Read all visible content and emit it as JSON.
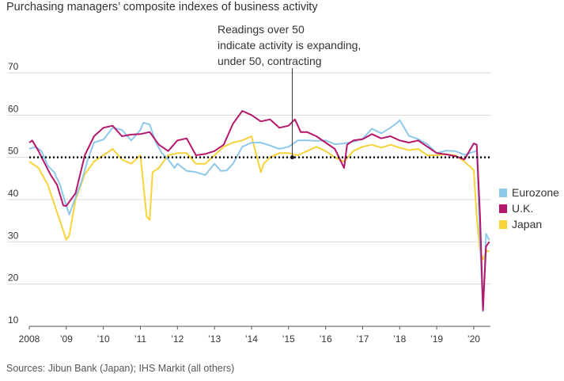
{
  "title": "Purchasing managers’ composite indexes of business activity",
  "source": "Sources: Jibun Bank (Japan); IHS Markit (all others)",
  "colors": {
    "eurozone": "#8ec8ea",
    "uk": "#b5176b",
    "japan": "#f7d33a",
    "reference": "#111111",
    "grid": "#d9d9d9"
  },
  "chart_data": {
    "type": "line",
    "title": "Purchasing managers’ composite indexes of business activity",
    "xlabel": "",
    "ylabel": "",
    "xlim": [
      2008,
      2020.45
    ],
    "ylim": [
      10,
      70
    ],
    "grid": true,
    "legend_position": "right",
    "x_tick_values": [
      2008,
      2009,
      2010,
      2011,
      2012,
      2013,
      2014,
      2015,
      2016,
      2017,
      2018,
      2019,
      2020
    ],
    "x_tick_labels": [
      "2008",
      "’09",
      "’10",
      "’11",
      "’12",
      "’13",
      "’14",
      "’15",
      "’16",
      "’17",
      "’18",
      "’19",
      "’20"
    ],
    "y_ticks": [
      10,
      20,
      30,
      40,
      50,
      60,
      70
    ],
    "reference_line": {
      "y": 50,
      "style": "dotted"
    },
    "annotation": {
      "lines": [
        "Readings over 50",
        "indicate activity is expanding,",
        "under 50, contracting"
      ],
      "x": 2015.1,
      "y": 50
    },
    "series": [
      {
        "name": "Eurozone",
        "x": [
          2008.0,
          2008.17,
          2008.33,
          2008.5,
          2008.67,
          2008.83,
          2009.0,
          2009.08,
          2009.25,
          2009.42,
          2009.58,
          2009.75,
          2009.92,
          2010.0,
          2010.25,
          2010.5,
          2010.75,
          2011.0,
          2011.08,
          2011.25,
          2011.42,
          2011.58,
          2011.75,
          2011.92,
          2012.0,
          2012.25,
          2012.5,
          2012.75,
          2013.0,
          2013.17,
          2013.33,
          2013.5,
          2013.75,
          2014.0,
          2014.25,
          2014.5,
          2014.75,
          2015.0,
          2015.25,
          2015.5,
          2015.75,
          2016.0,
          2016.25,
          2016.5,
          2016.75,
          2017.0,
          2017.25,
          2017.5,
          2017.75,
          2017.92,
          2018.0,
          2018.25,
          2018.5,
          2018.75,
          2019.0,
          2019.25,
          2019.5,
          2019.75,
          2020.0,
          2020.08,
          2020.17,
          2020.25,
          2020.33,
          2020.42
        ],
        "values": [
          52.0,
          52.5,
          51.5,
          48.0,
          46.5,
          43.5,
          38.5,
          36.5,
          40.5,
          44.5,
          49.5,
          53.5,
          54.0,
          54.2,
          57.0,
          56.5,
          54.0,
          56.5,
          58.2,
          57.8,
          53.5,
          51.0,
          49.5,
          47.5,
          48.5,
          46.8,
          46.5,
          45.8,
          48.5,
          46.8,
          46.9,
          48.5,
          52.5,
          53.5,
          53.5,
          52.8,
          52.0,
          52.5,
          54.0,
          54.0,
          53.9,
          54.0,
          53.1,
          53.3,
          53.7,
          54.4,
          56.8,
          55.7,
          57.0,
          58.1,
          58.8,
          55.1,
          54.3,
          53.1,
          51.0,
          51.6,
          51.5,
          50.6,
          51.3,
          51.6,
          29.7,
          13.6,
          31.9,
          30.4
        ]
      },
      {
        "name": "U.K.",
        "x": [
          2008.0,
          2008.08,
          2008.25,
          2008.42,
          2008.58,
          2008.75,
          2008.92,
          2009.0,
          2009.25,
          2009.5,
          2009.75,
          2010.0,
          2010.25,
          2010.5,
          2010.75,
          2011.0,
          2011.25,
          2011.5,
          2011.75,
          2012.0,
          2012.25,
          2012.5,
          2012.75,
          2013.0,
          2013.25,
          2013.5,
          2013.67,
          2013.75,
          2014.0,
          2014.25,
          2014.5,
          2014.75,
          2015.0,
          2015.17,
          2015.33,
          2015.5,
          2015.75,
          2016.0,
          2016.25,
          2016.5,
          2016.58,
          2016.75,
          2017.0,
          2017.25,
          2017.5,
          2017.75,
          2018.0,
          2018.25,
          2018.5,
          2018.75,
          2019.0,
          2019.25,
          2019.5,
          2019.75,
          2020.0,
          2020.08,
          2020.17,
          2020.25,
          2020.33,
          2020.42
        ],
        "values": [
          53.5,
          54.0,
          51.5,
          48.5,
          45.8,
          43.5,
          38.6,
          38.5,
          41.5,
          50.5,
          55.0,
          57.0,
          57.5,
          55.0,
          55.4,
          55.5,
          56.0,
          53.0,
          51.5,
          54.0,
          54.5,
          50.5,
          50.8,
          51.5,
          53.0,
          58.0,
          60.0,
          61.0,
          60.0,
          58.5,
          59.0,
          57.0,
          57.5,
          59.0,
          56.0,
          56.0,
          55.0,
          53.5,
          52.0,
          47.5,
          53.0,
          54.0,
          54.3,
          55.5,
          54.5,
          55.0,
          54.0,
          53.5,
          54.0,
          52.5,
          51.0,
          50.7,
          50.3,
          49.5,
          53.3,
          53.0,
          36.0,
          13.8,
          28.9,
          30.0
        ]
      },
      {
        "name": "Japan",
        "x": [
          2008.0,
          2008.25,
          2008.5,
          2008.75,
          2009.0,
          2009.08,
          2009.25,
          2009.5,
          2009.75,
          2010.0,
          2010.25,
          2010.5,
          2010.75,
          2011.0,
          2011.17,
          2011.25,
          2011.33,
          2011.5,
          2011.75,
          2012.0,
          2012.25,
          2012.5,
          2012.75,
          2013.0,
          2013.25,
          2013.5,
          2013.75,
          2014.0,
          2014.25,
          2014.33,
          2014.5,
          2014.75,
          2015.0,
          2015.25,
          2015.5,
          2015.75,
          2016.0,
          2016.25,
          2016.5,
          2016.75,
          2017.0,
          2017.25,
          2017.5,
          2017.75,
          2018.0,
          2018.25,
          2018.5,
          2018.75,
          2019.0,
          2019.25,
          2019.5,
          2019.75,
          2020.0,
          2020.08,
          2020.17,
          2020.25,
          2020.33,
          2020.42
        ],
        "values": [
          49.0,
          47.5,
          43.5,
          37.0,
          30.5,
          31.5,
          40.0,
          46.0,
          49.0,
          50.5,
          52.0,
          49.5,
          48.5,
          50.5,
          36.0,
          35.2,
          46.5,
          47.5,
          50.5,
          51.0,
          51.0,
          48.5,
          48.5,
          50.5,
          52.5,
          53.5,
          54.0,
          55.0,
          46.5,
          48.5,
          50.0,
          51.0,
          51.0,
          50.5,
          51.5,
          52.5,
          51.5,
          50.0,
          49.0,
          51.5,
          52.5,
          53.0,
          52.3,
          53.0,
          52.3,
          51.7,
          52.0,
          50.5,
          50.5,
          50.7,
          50.5,
          49.0,
          47.0,
          35.8,
          27.8,
          25.8,
          27.8,
          27.8
        ]
      }
    ]
  }
}
